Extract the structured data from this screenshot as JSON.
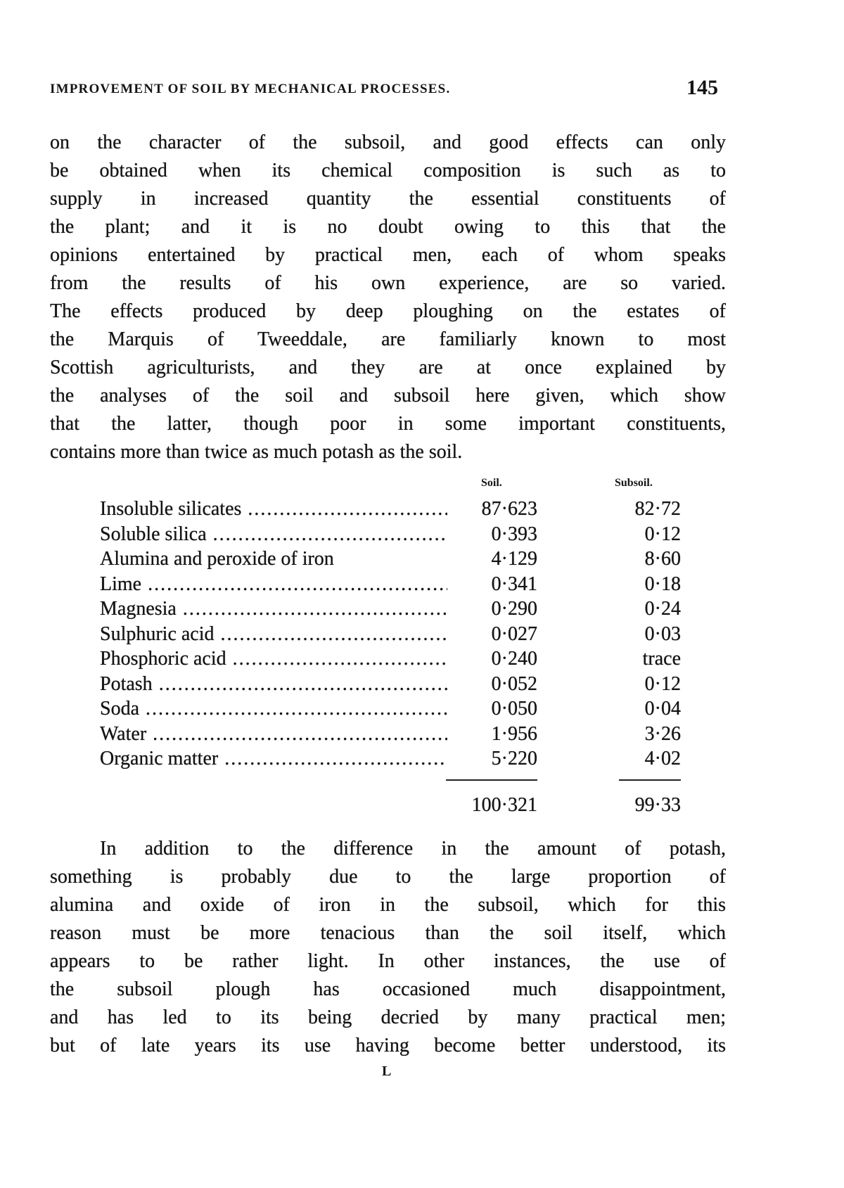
{
  "header": {
    "running_title": "IMPROVEMENT OF SOIL BY MECHANICAL PROCESSES.",
    "page_number": "145"
  },
  "paragraph1": [
    "on the character of the subsoil, and good effects can only",
    "be obtained when its chemical composition is such as to",
    "supply in increased quantity the essential constituents of",
    "the plant; and it is no doubt owing to this that the",
    "opinions entertained by practical men, each of whom speaks",
    "from the results of his own experience, are so varied.",
    "The effects produced by deep ploughing on the estates of",
    "the Marquis of Tweeddale, are familiarly known to most",
    "Scottish agriculturists, and they are at once explained by",
    "the analyses of the soil and subsoil here given, which show",
    "that the latter, though poor in some important constituents,",
    "contains more than twice as much potash as the soil."
  ],
  "table": {
    "columns": [
      "Soil.",
      "Subsoil."
    ],
    "rows": [
      {
        "label": "Insoluble silicates",
        "soil": "87·623",
        "subsoil": "82·72"
      },
      {
        "label": "Soluble silica",
        "soil": "0·393",
        "subsoil": "0·12"
      },
      {
        "label": "Alumina and peroxide of iron",
        "soil": "4·129",
        "subsoil": "8·60"
      },
      {
        "label": "Lime",
        "soil": "0·341",
        "subsoil": "0·18"
      },
      {
        "label": "Magnesia",
        "soil": "0·290",
        "subsoil": "0·24"
      },
      {
        "label": "Sulphuric acid",
        "soil": "0·027",
        "subsoil": "0·03"
      },
      {
        "label": "Phosphoric acid",
        "soil": "0·240",
        "subsoil": "trace"
      },
      {
        "label": "Potash",
        "soil": "0·052",
        "subsoil": "0·12"
      },
      {
        "label": "Soda",
        "soil": "0·050",
        "subsoil": "0·04"
      },
      {
        "label": "Water",
        "soil": "1·956",
        "subsoil": "3·26"
      },
      {
        "label": "Organic matter",
        "soil": "5·220",
        "subsoil": "4·02"
      }
    ],
    "totals": {
      "soil": "100·321",
      "subsoil": "99·33"
    }
  },
  "paragraph2": [
    "In addition to the difference in the amount of potash,",
    "something is probably due to the large proportion of",
    "alumina and oxide of iron in the subsoil, which for this",
    "reason must be more tenacious than the soil itself, which",
    "appears to be rather light. In other instances, the use of",
    "the subsoil plough has occasioned much disappointment,",
    "and has led to its being decried by many practical men;",
    "but of late years its use having become better understood, its"
  ],
  "footer": {
    "signature_mark": "L"
  }
}
